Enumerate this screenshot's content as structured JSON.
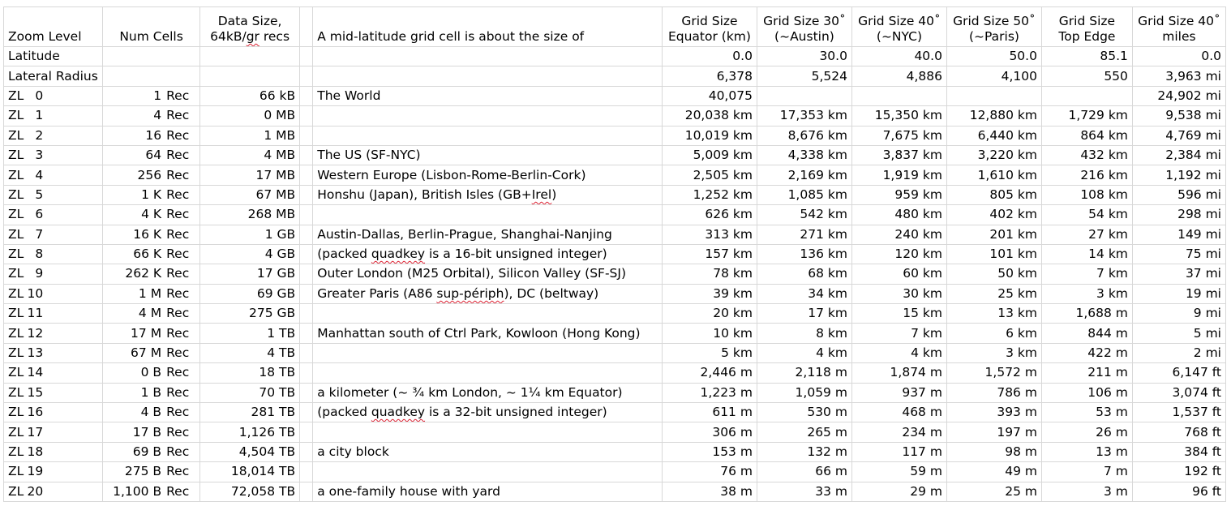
{
  "headers": {
    "zoom_level": "Zoom Level",
    "num_cells": "Num Cells",
    "data_size_l1": "Data Size,",
    "data_size_l2_a": "64kB/",
    "data_size_l2_b": "gr",
    "data_size_l2_c": " recs",
    "description": "A mid-latitude grid cell is about the size of",
    "equator_l1": "Grid Size",
    "equator_l2": "Equator (km)",
    "austin_l1": "Grid Size 30˚",
    "austin_l2": "(~Austin)",
    "nyc_l1": "Grid Size 40˚",
    "nyc_l2": "(~NYC)",
    "paris_l1": "Grid Size 50˚",
    "paris_l2": "(~Paris)",
    "top_l1": "Grid Size",
    "top_l2": "Top Edge",
    "miles_l1": "Grid Size 40˚",
    "miles_l2": "miles"
  },
  "latitude_row": {
    "label": "Latitude",
    "equator": "0.0",
    "austin": "30.0",
    "nyc": "40.0",
    "paris": "50.0",
    "top": "85.1",
    "miles": "0.0"
  },
  "radius_row": {
    "label": "Lateral Radius",
    "equator": "6,378",
    "austin": "5,524",
    "nyc": "4,886",
    "paris": "4,100",
    "top": "550",
    "miles": "3,963 mi"
  },
  "rows": [
    {
      "zl": "0",
      "cells": "1",
      "unit": "Rec",
      "size": "66 kB",
      "desc": "The World",
      "eq": "40,075",
      "au": "",
      "ny": "",
      "pa": "",
      "top": "",
      "mi": "24,902 mi"
    },
    {
      "zl": "1",
      "cells": "4",
      "unit": "Rec",
      "size": "0 MB",
      "desc": "",
      "eq": "20,038 km",
      "au": "17,353 km",
      "ny": "15,350 km",
      "pa": "12,880 km",
      "top": "1,729 km",
      "mi": "9,538 mi"
    },
    {
      "zl": "2",
      "cells": "16",
      "unit": "Rec",
      "size": "1 MB",
      "desc": "",
      "eq": "10,019 km",
      "au": "8,676 km",
      "ny": "7,675 km",
      "pa": "6,440 km",
      "top": "864 km",
      "mi": "4,769 mi"
    },
    {
      "zl": "3",
      "cells": "64",
      "unit": "Rec",
      "size": "4 MB",
      "desc": "The US (SF-NYC)",
      "eq": "5,009 km",
      "au": "4,338 km",
      "ny": "3,837 km",
      "pa": "3,220 km",
      "top": "432 km",
      "mi": "2,384 mi"
    },
    {
      "zl": "4",
      "cells": "256",
      "unit": "Rec",
      "size": "17 MB",
      "desc": "Western Europe (Lisbon-Rome-Berlin-Cork)",
      "eq": "2,505 km",
      "au": "2,169 km",
      "ny": "1,919 km",
      "pa": "1,610 km",
      "top": "216 km",
      "mi": "1,192 mi"
    },
    {
      "zl": "5",
      "cells": "1 K",
      "unit": "Rec",
      "size": "67 MB",
      "desc": "Honshu (Japan), British Isles (GB+Irel)",
      "eq": "1,252 km",
      "au": "1,085 km",
      "ny": "959 km",
      "pa": "805 km",
      "top": "108 km",
      "mi": "596 mi"
    },
    {
      "zl": "6",
      "cells": "4 K",
      "unit": "Rec",
      "size": "268 MB",
      "desc": "",
      "eq": "626 km",
      "au": "542 km",
      "ny": "480 km",
      "pa": "402 km",
      "top": "54 km",
      "mi": "298 mi"
    },
    {
      "zl": "7",
      "cells": "16 K",
      "unit": "Rec",
      "size": "1 GB",
      "desc": "Austin-Dallas, Berlin-Prague, Shanghai-Nanjing",
      "eq": "313 km",
      "au": "271 km",
      "ny": "240 km",
      "pa": "201 km",
      "top": "27 km",
      "mi": "149 mi"
    },
    {
      "zl": "8",
      "cells": "66 K",
      "unit": "Rec",
      "size": "4 GB",
      "desc": "(packed quadkey is a 16-bit unsigned integer)",
      "eq": "157 km",
      "au": "136 km",
      "ny": "120 km",
      "pa": "101 km",
      "top": "14 km",
      "mi": "75 mi"
    },
    {
      "zl": "9",
      "cells": "262 K",
      "unit": "Rec",
      "size": "17 GB",
      "desc": "Outer London (M25 Orbital), Silicon Valley (SF-SJ)",
      "eq": "78 km",
      "au": "68 km",
      "ny": "60 km",
      "pa": "50 km",
      "top": "7 km",
      "mi": "37 mi"
    },
    {
      "zl": "10",
      "cells": "1 M",
      "unit": "Rec",
      "size": "69 GB",
      "desc": "Greater Paris (A86 sup-périph), DC (beltway)",
      "eq": "39 km",
      "au": "34 km",
      "ny": "30 km",
      "pa": "25 km",
      "top": "3 km",
      "mi": "19 mi"
    },
    {
      "zl": "11",
      "cells": "4 M",
      "unit": "Rec",
      "size": "275 GB",
      "desc": "",
      "eq": "20 km",
      "au": "17 km",
      "ny": "15 km",
      "pa": "13 km",
      "top": "1,688  m",
      "mi": "9 mi"
    },
    {
      "zl": "12",
      "cells": "17 M",
      "unit": "Rec",
      "size": "1 TB",
      "desc": "Manhattan south of Ctrl Park, Kowloon (Hong Kong)",
      "eq": "10 km",
      "au": "8 km",
      "ny": "7 km",
      "pa": "6 km",
      "top": "844  m",
      "mi": "5 mi"
    },
    {
      "zl": "13",
      "cells": "67 M",
      "unit": "Rec",
      "size": "4 TB",
      "desc": "",
      "eq": "5 km",
      "au": "4 km",
      "ny": "4 km",
      "pa": "3 km",
      "top": "422  m",
      "mi": "2 mi"
    },
    {
      "zl": "14",
      "cells": "0 B",
      "unit": "Rec",
      "size": "18 TB",
      "desc": "",
      "eq": "2,446  m",
      "au": "2,118  m",
      "ny": "1,874  m",
      "pa": "1,572  m",
      "top": "211  m",
      "mi": "6,147 ft"
    },
    {
      "zl": "15",
      "cells": "1 B",
      "unit": "Rec",
      "size": "70 TB",
      "desc": "a kilometer (~ ¾ km London, ~ 1¼ km Equator)",
      "eq": "1,223  m",
      "au": "1,059  m",
      "ny": "937  m",
      "pa": "786  m",
      "top": "106  m",
      "mi": "3,074 ft"
    },
    {
      "zl": "16",
      "cells": "4 B",
      "unit": "Rec",
      "size": "281 TB",
      "desc": "(packed quadkey is a 32-bit unsigned integer)",
      "eq": "611  m",
      "au": "530  m",
      "ny": "468  m",
      "pa": "393  m",
      "top": "53  m",
      "mi": "1,537 ft"
    },
    {
      "zl": "17",
      "cells": "17 B",
      "unit": "Rec",
      "size": "1,126 TB",
      "desc": "",
      "eq": "306  m",
      "au": "265  m",
      "ny": "234  m",
      "pa": "197  m",
      "top": "26  m",
      "mi": "768 ft"
    },
    {
      "zl": "18",
      "cells": "69 B",
      "unit": "Rec",
      "size": "4,504 TB",
      "desc": "a city block",
      "eq": "153  m",
      "au": "132  m",
      "ny": "117  m",
      "pa": "98  m",
      "top": "13  m",
      "mi": "384 ft"
    },
    {
      "zl": "19",
      "cells": "275 B",
      "unit": "Rec",
      "size": "18,014 TB",
      "desc": "",
      "eq": "76  m",
      "au": "66  m",
      "ny": "59  m",
      "pa": "49  m",
      "top": "7  m",
      "mi": "192 ft"
    },
    {
      "zl": "20",
      "cells": "1,100 B",
      "unit": "Rec",
      "size": "72,058 TB",
      "desc": "a one-family house with yard",
      "eq": "38  m",
      "au": "33  m",
      "ny": "29  m",
      "pa": "25  m",
      "top": "3  m",
      "mi": "96 ft"
    }
  ]
}
